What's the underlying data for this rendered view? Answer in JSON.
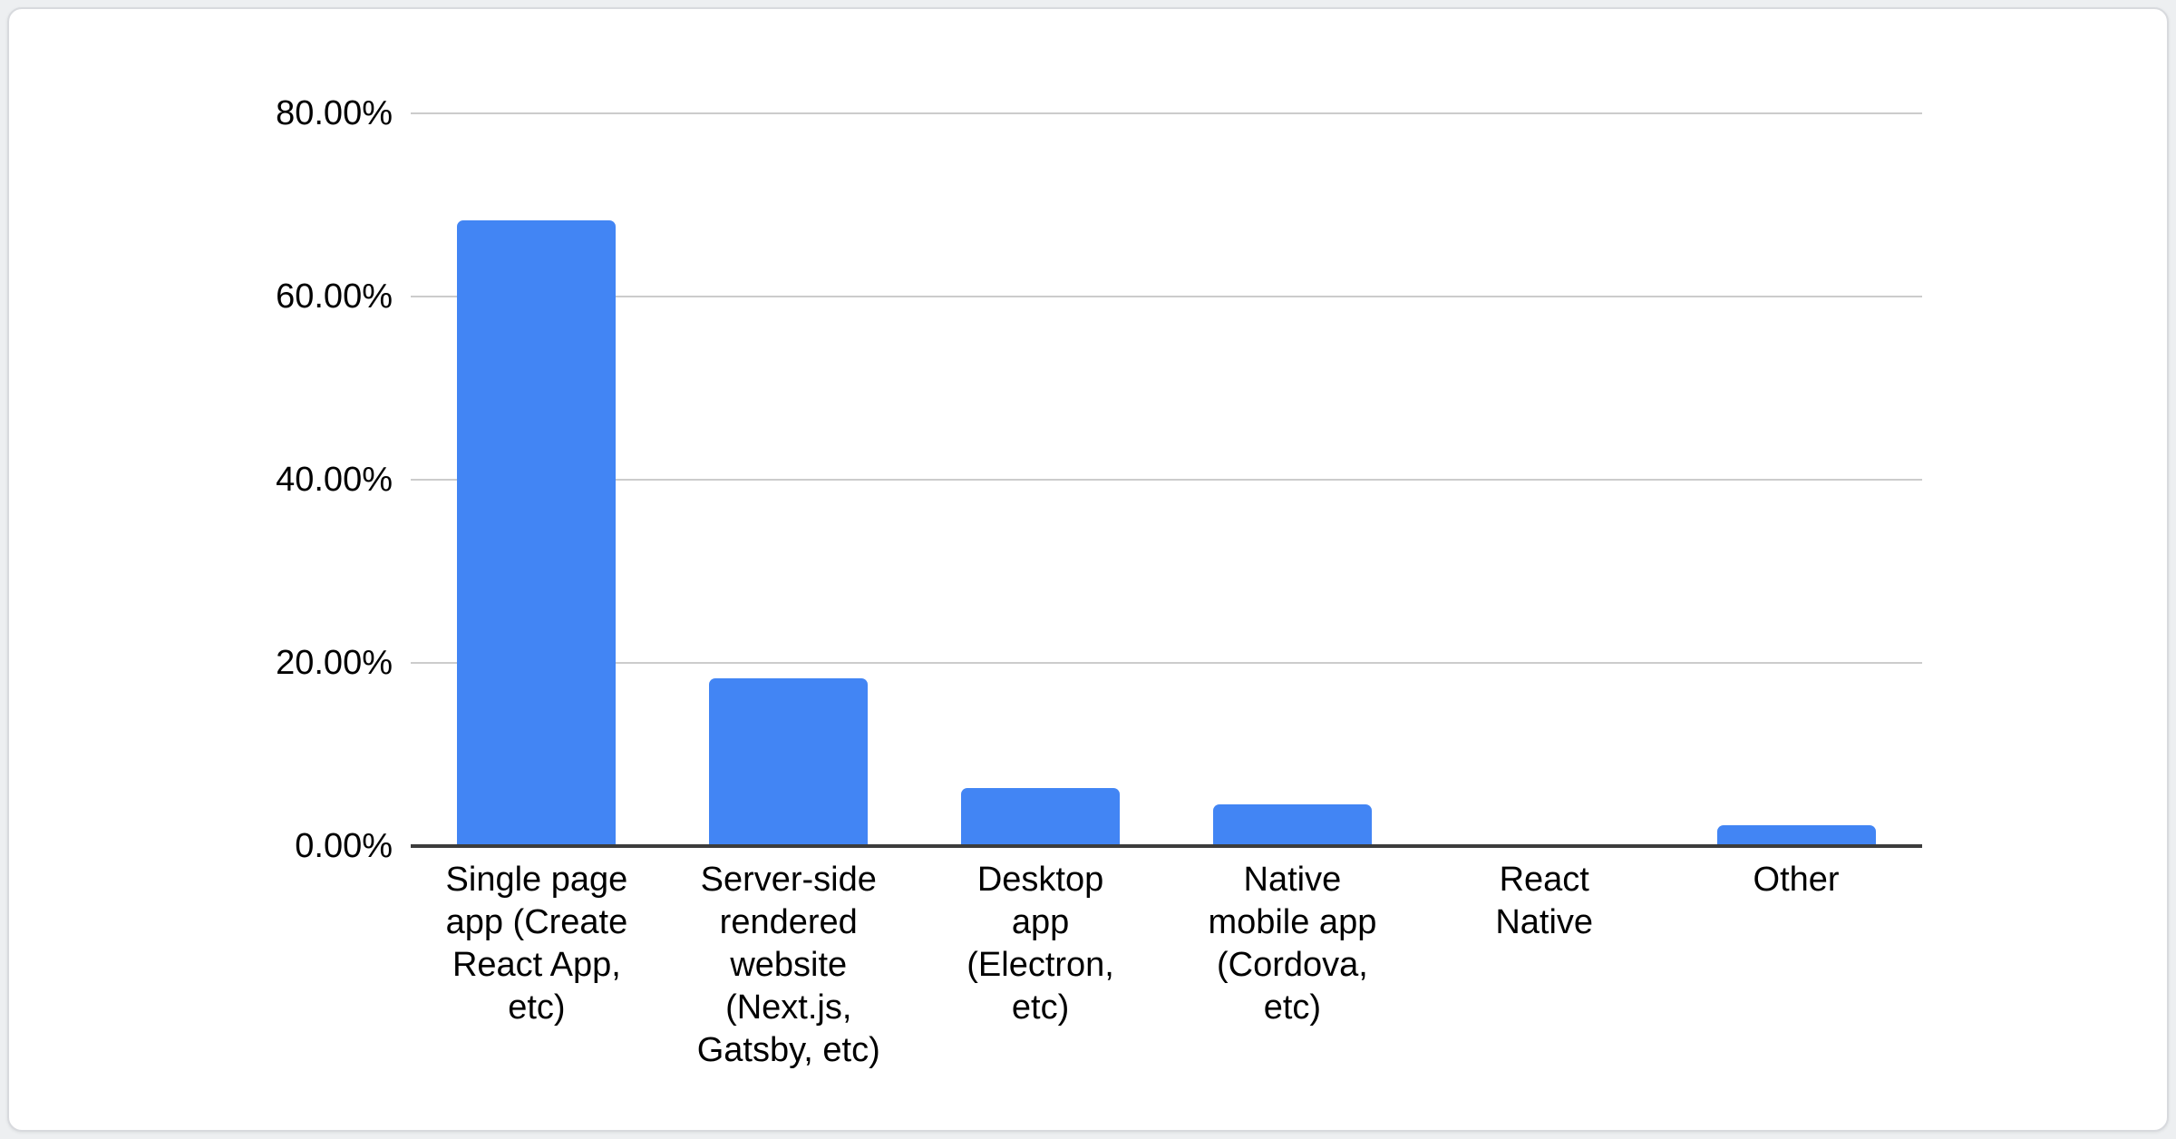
{
  "chart_data": {
    "type": "bar",
    "title": "",
    "xlabel": "",
    "ylabel": "",
    "categories": [
      "Single page app (Create React App, etc)",
      "Server-side rendered website (Next.js, Gatsby, etc)",
      "Desktop app (Electron, etc)",
      "Native mobile app (Cordova, etc)",
      "React Native",
      "Other"
    ],
    "categories_display": [
      "Single page\napp (Create\nReact App,\netc)",
      "Server-side\nrendered\nwebsite\n(Next.js,\nGatsby, etc)",
      "Desktop\napp\n(Electron,\netc)",
      "Native\nmobile app\n(Cordova,\netc)",
      "React\nNative",
      "Other"
    ],
    "values": [
      68.3,
      18.3,
      6.3,
      4.6,
      0.0,
      2.3
    ],
    "unit": "%",
    "ylim": [
      0,
      80
    ],
    "ytick_step": 20,
    "yticks": [
      "0.00%",
      "20.00%",
      "40.00%",
      "60.00%",
      "80.00%"
    ],
    "grid": true,
    "legend_position": "none",
    "bar_color": "#4285f4",
    "gridline_color": "#cccccc",
    "axis_line_color": "#3c3c3c",
    "text_color": "#000000"
  }
}
